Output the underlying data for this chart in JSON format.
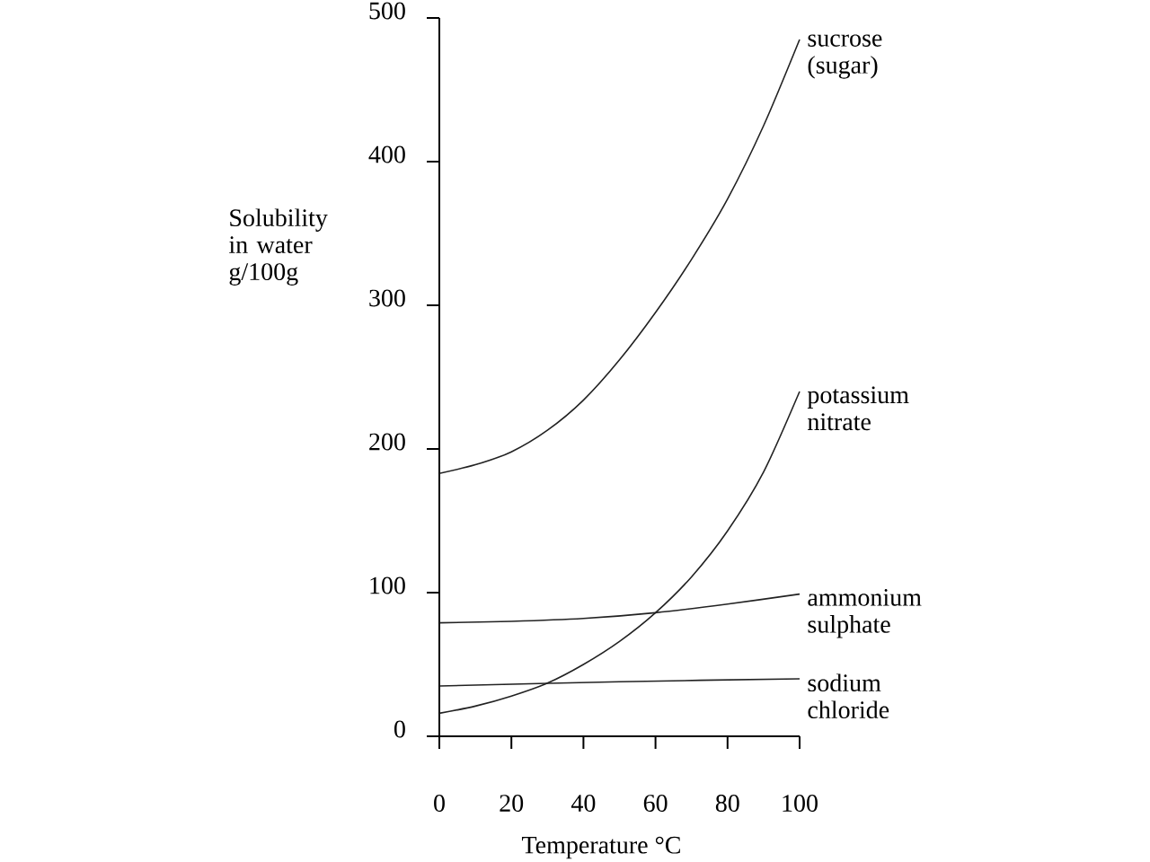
{
  "chart_data": {
    "type": "line",
    "xlabel": "Temperature °C",
    "ylabel": "Solubility in water g/100g",
    "x": [
      0,
      10,
      20,
      30,
      40,
      50,
      60,
      70,
      80,
      90,
      100
    ],
    "xlim": [
      0,
      100
    ],
    "xticks": [
      0,
      20,
      40,
      60,
      80,
      100
    ],
    "ylim": [
      0,
      500
    ],
    "yticks": [
      0,
      100,
      200,
      300,
      400,
      500
    ],
    "series": [
      {
        "name": "sucrose (sugar)",
        "color": "#222222",
        "values": [
          183,
          189,
          198,
          213,
          234,
          262,
          295,
          332,
          374,
          425,
          485
        ]
      },
      {
        "name": "potassium nitrate",
        "color": "#222222",
        "values": [
          16,
          21,
          28,
          37,
          50,
          66,
          86,
          111,
          143,
          184,
          240
        ]
      },
      {
        "name": "ammonium sulphate",
        "color": "#222222",
        "x": [
          0,
          20,
          40,
          60,
          80,
          100
        ],
        "values": [
          79,
          80,
          82,
          86,
          92,
          99
        ]
      },
      {
        "name": "sodium chloride",
        "color": "#222222",
        "x": [
          0,
          50,
          100
        ],
        "values": [
          35,
          38,
          40
        ]
      }
    ]
  }
}
